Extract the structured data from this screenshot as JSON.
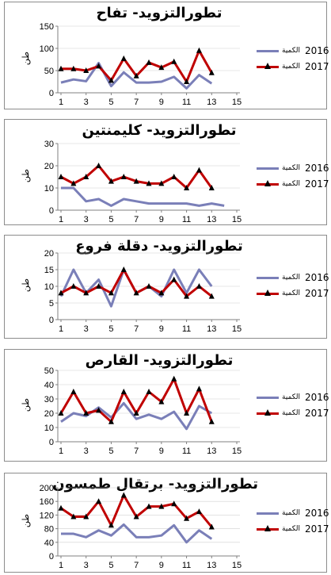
{
  "colors": {
    "s2016": "#7a7fb8",
    "s2017": "#c00000",
    "marker": "#000000",
    "axis": "#808080",
    "grid": "#d0d0d0"
  },
  "charts": [
    {
      "chart_data": {
        "type": "line",
        "title": "تطورالتزويد- تفاح",
        "ylabel": "طن",
        "xticks": [
          "1",
          "3",
          "5",
          "7",
          "9",
          "11",
          "13",
          "15"
        ],
        "yticks": [
          "0",
          "50",
          "100",
          "150"
        ],
        "ylim": [
          0,
          150
        ],
        "x": [
          1,
          2,
          3,
          4,
          5,
          6,
          7,
          8,
          9,
          10,
          11,
          12,
          13,
          14,
          15
        ],
        "series": [
          {
            "name": "الكمية 2016",
            "year": "2016",
            "label": "الكمية",
            "values": [
              23,
              30,
              26,
              67,
              15,
              46,
              23,
              23,
              25,
              36,
              10,
              40,
              21,
              null,
              null
            ]
          },
          {
            "name": "الكمية 2017",
            "year": "2017",
            "label": "الكمية",
            "values": [
              54,
              54,
              50,
              60,
              28,
              77,
              38,
              68,
              57,
              70,
              25,
              95,
              45,
              null,
              null
            ]
          }
        ]
      }
    },
    {
      "chart_data": {
        "type": "line",
        "title": "تطورالتزويد- كليمنتين",
        "ylabel": "طن",
        "xticks": [
          "1",
          "3",
          "5",
          "7",
          "9",
          "11",
          "13",
          "15"
        ],
        "yticks": [
          "0",
          "10",
          "20",
          "30"
        ],
        "ylim": [
          0,
          30
        ],
        "x": [
          1,
          2,
          3,
          4,
          5,
          6,
          7,
          8,
          9,
          10,
          11,
          12,
          13,
          14,
          15
        ],
        "series": [
          {
            "name": "الكمية 2016",
            "year": "2016",
            "label": "الكمية",
            "values": [
              10,
              10,
              4,
              5,
              2,
              5,
              4,
              3,
              3,
              3,
              3,
              2,
              3,
              2,
              null
            ]
          },
          {
            "name": "الكمية 2017",
            "year": "2017",
            "label": "الكمية",
            "values": [
              15,
              12,
              15,
              20,
              13,
              15,
              13,
              12,
              12,
              15,
              10,
              18,
              10,
              null,
              null
            ]
          }
        ]
      }
    },
    {
      "chart_data": {
        "type": "line",
        "title": "تطورالتزويد- دقلة فروع",
        "ylabel": "طن",
        "xticks": [
          "1",
          "3",
          "5",
          "7",
          "9",
          "11",
          "13",
          "15"
        ],
        "yticks": [
          "0",
          "5",
          "10",
          "15",
          "20"
        ],
        "ylim": [
          0,
          20
        ],
        "x": [
          1,
          2,
          3,
          4,
          5,
          6,
          7,
          8,
          9,
          10,
          11,
          12,
          13,
          14,
          15
        ],
        "series": [
          {
            "name": "الكمية 2016",
            "year": "2016",
            "label": "الكمية",
            "values": [
              7,
              15,
              8,
              12,
              4,
              15,
              8,
              10,
              7,
              15,
              8,
              15,
              10,
              null,
              null
            ]
          },
          {
            "name": "الكمية 2017",
            "year": "2017",
            "label": "الكمية",
            "values": [
              8,
              10,
              8,
              10,
              8,
              15,
              8,
              10,
              8,
              12,
              7,
              10,
              7,
              null,
              null
            ]
          }
        ]
      }
    },
    {
      "chart_data": {
        "type": "line",
        "title": "تطورالتزويد- القارص",
        "ylabel": "طن",
        "xticks": [
          "1",
          "3",
          "5",
          "7",
          "9",
          "11",
          "13",
          "15"
        ],
        "yticks": [
          "0",
          "10",
          "20",
          "30",
          "40",
          "50"
        ],
        "ylim": [
          0,
          50
        ],
        "x": [
          1,
          2,
          3,
          4,
          5,
          6,
          7,
          8,
          9,
          10,
          11,
          12,
          13,
          14,
          15
        ],
        "series": [
          {
            "name": "الكمية 2016",
            "year": "2016",
            "label": "الكمية",
            "values": [
              14,
              20,
              18,
              24,
              17,
              27,
              16,
              19,
              16,
              21,
              9,
              25,
              20,
              null,
              null
            ]
          },
          {
            "name": "الكمية 2017",
            "year": "2017",
            "label": "الكمية",
            "values": [
              20,
              35,
              20,
              22,
              14,
              35,
              20,
              35,
              28,
              44,
              20,
              37,
              14,
              null,
              null
            ]
          }
        ]
      }
    },
    {
      "chart_data": {
        "type": "line",
        "title": "تطورالتزويد- برتقال طمسون",
        "ylabel": "طن",
        "xticks": [
          "1",
          "3",
          "5",
          "7",
          "9",
          "11",
          "13",
          "15"
        ],
        "yticks": [
          "0",
          "40",
          "80",
          "120",
          "160",
          "200"
        ],
        "ylim": [
          0,
          200
        ],
        "x": [
          1,
          2,
          3,
          4,
          5,
          6,
          7,
          8,
          9,
          10,
          11,
          12,
          13,
          14,
          15
        ],
        "series": [
          {
            "name": "الكمية 2016",
            "year": "2016",
            "label": "الكمية",
            "values": [
              65,
              65,
              55,
              75,
              60,
              92,
              55,
              55,
              60,
              90,
              40,
              75,
              50,
              null,
              null
            ]
          },
          {
            "name": "الكمية 2017",
            "year": "2017",
            "label": "الكمية",
            "values": [
              140,
              115,
              115,
              160,
              90,
              178,
              115,
              145,
              145,
              153,
              110,
              130,
              85,
              null,
              null
            ]
          }
        ]
      }
    }
  ]
}
